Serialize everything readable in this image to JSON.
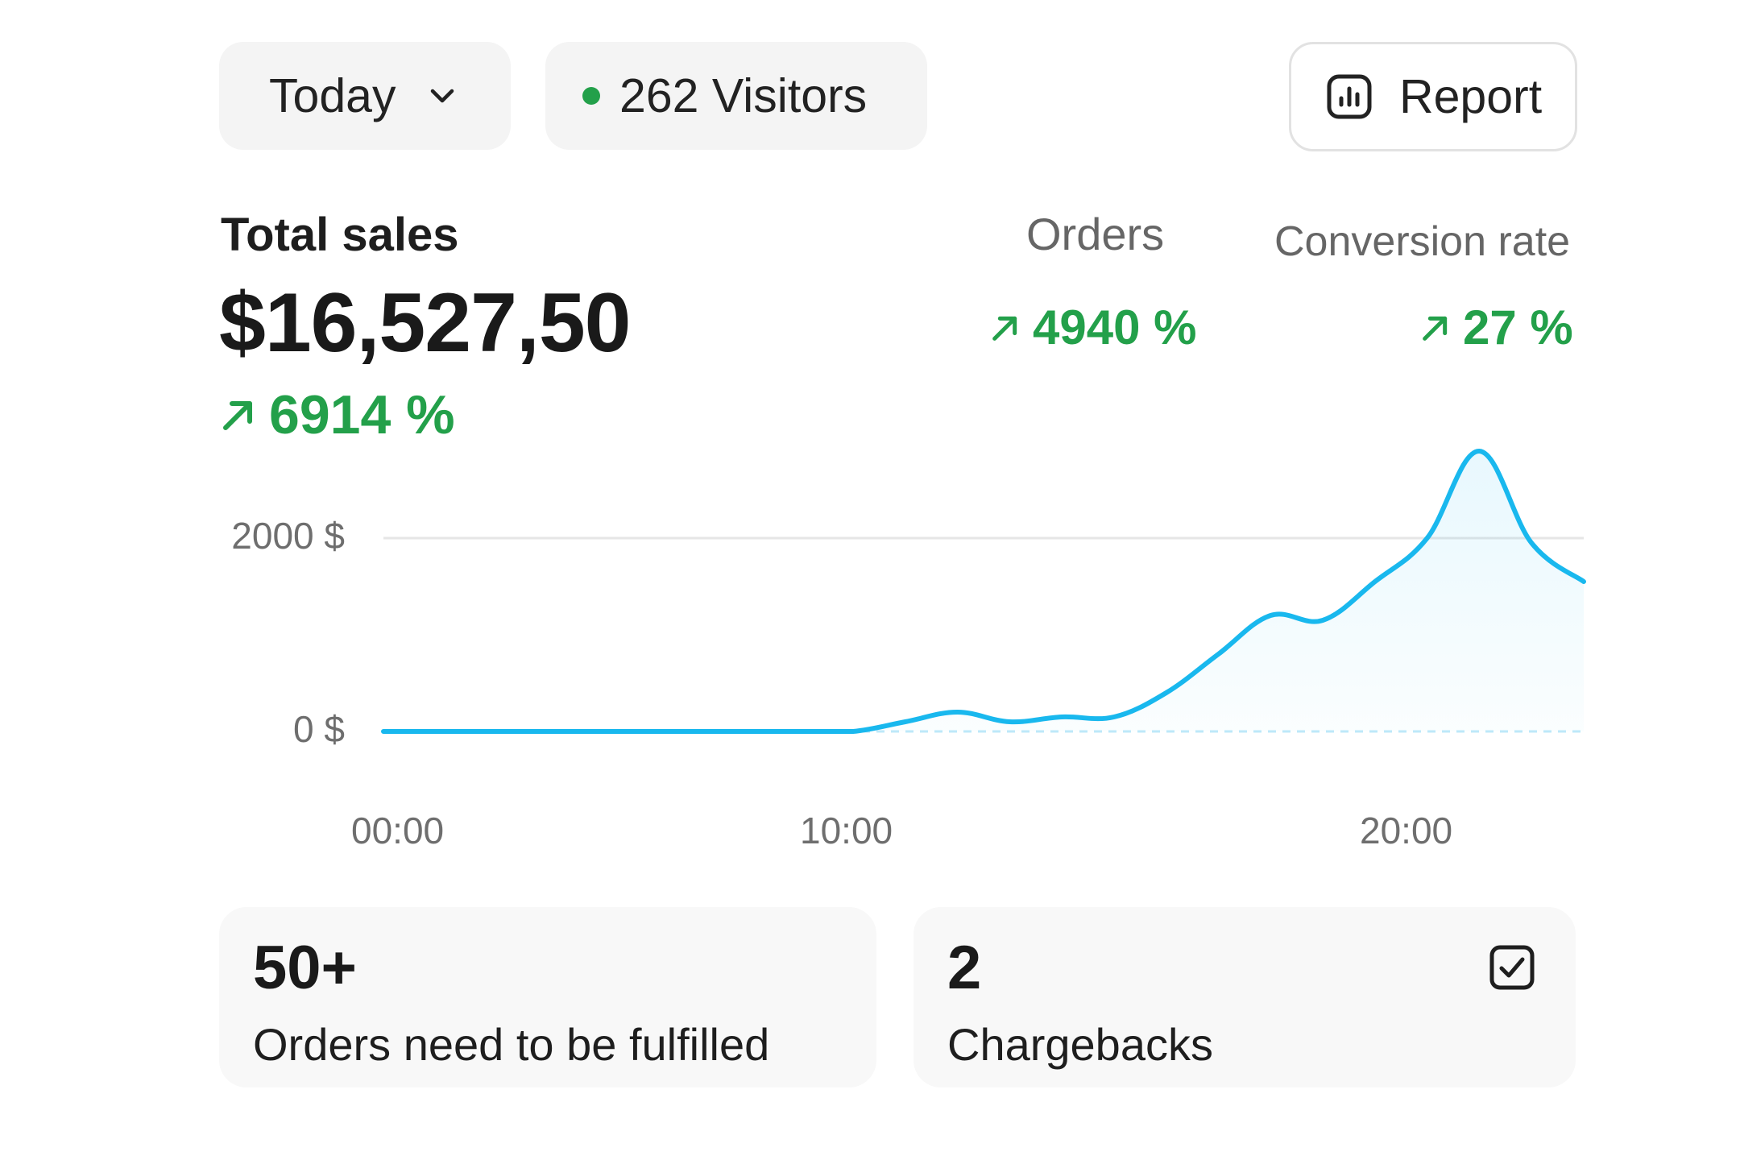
{
  "header": {
    "period_label": "Today",
    "visitors_label": "262 Visitors",
    "report_label": "Report"
  },
  "metrics": {
    "total_sales_label": "Total sales",
    "total_sales_value": "$16,527,50",
    "total_sales_delta": "6914 %",
    "orders_label": "Orders",
    "orders_delta": "4940 %",
    "conversion_label": "Conversion rate",
    "conversion_delta": "27 %"
  },
  "colors": {
    "accent": "#19b8ee",
    "positive": "#23a04a",
    "card_bg": "#f8f8f8"
  },
  "icons": {
    "period_dropdown": "chevron-down-icon",
    "visitors_status": "green-dot-icon",
    "report": "bar-chart-icon",
    "delta": "arrow-up-right-icon",
    "chargebacks": "checkbox-checked-icon"
  },
  "chart_data": {
    "type": "area",
    "y_tick_labels": [
      "2000 $",
      "0 $"
    ],
    "x_tick_labels": [
      "00:00",
      "10:00",
      "20:00"
    ],
    "ylim": [
      0,
      2000
    ],
    "grid": true,
    "series": [
      {
        "x": [
          "00:00",
          "01:00",
          "02:00",
          "03:00",
          "04:00",
          "05:00",
          "06:00",
          "07:00",
          "08:00",
          "09:00",
          "10:00",
          "11:00",
          "12:00",
          "13:00",
          "14:00",
          "15:00",
          "16:00",
          "17:00",
          "18:00",
          "19:00",
          "20:00",
          "21:00",
          "22:00",
          "23:00"
        ],
        "values": [
          0,
          0,
          0,
          0,
          0,
          0,
          0,
          0,
          0,
          0,
          100,
          200,
          100,
          150,
          150,
          400,
          800,
          1200,
          1150,
          1550,
          2000,
          2900,
          1950,
          1550
        ]
      }
    ]
  },
  "cards": [
    {
      "value": "50+",
      "label": "Orders need to be fulfilled"
    },
    {
      "value": "2",
      "label": "Chargebacks"
    }
  ]
}
